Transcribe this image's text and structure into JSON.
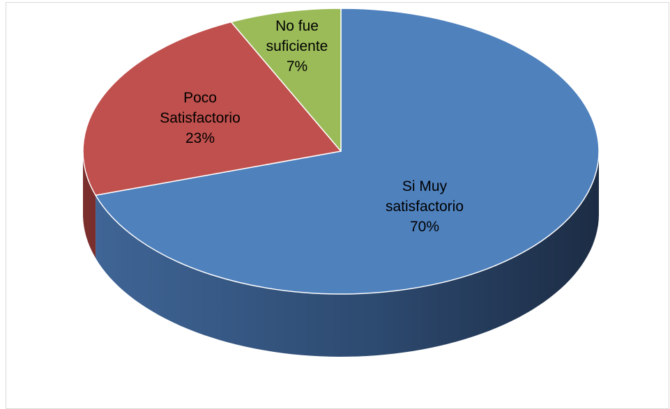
{
  "chart_data": {
    "type": "pie",
    "title": "",
    "three_d": true,
    "slices": [
      {
        "label": "Si Muy satisfactorio",
        "label_lines": [
          "Si Muy",
          "satisfactorio"
        ],
        "value": 70,
        "percent_label": "70%",
        "color": "#4F81BD",
        "side_color_dark": "#22324A",
        "side_color_light": "#3D6493"
      },
      {
        "label": "Poco Satisfactorio",
        "label_lines": [
          "Poco",
          "Satisfactorio"
        ],
        "value": 23,
        "percent_label": "23%",
        "color": "#C0504D",
        "side_color_dark": "#7B2F2D",
        "side_color_light": "#9A3E3B"
      },
      {
        "label": "No fue suficiente",
        "label_lines": [
          "No fue",
          "suficiente"
        ],
        "value": 7,
        "percent_label": "7%",
        "color": "#9BBB59",
        "side_color_dark": "#5E7A30",
        "side_color_light": "#7E9B46"
      }
    ]
  }
}
